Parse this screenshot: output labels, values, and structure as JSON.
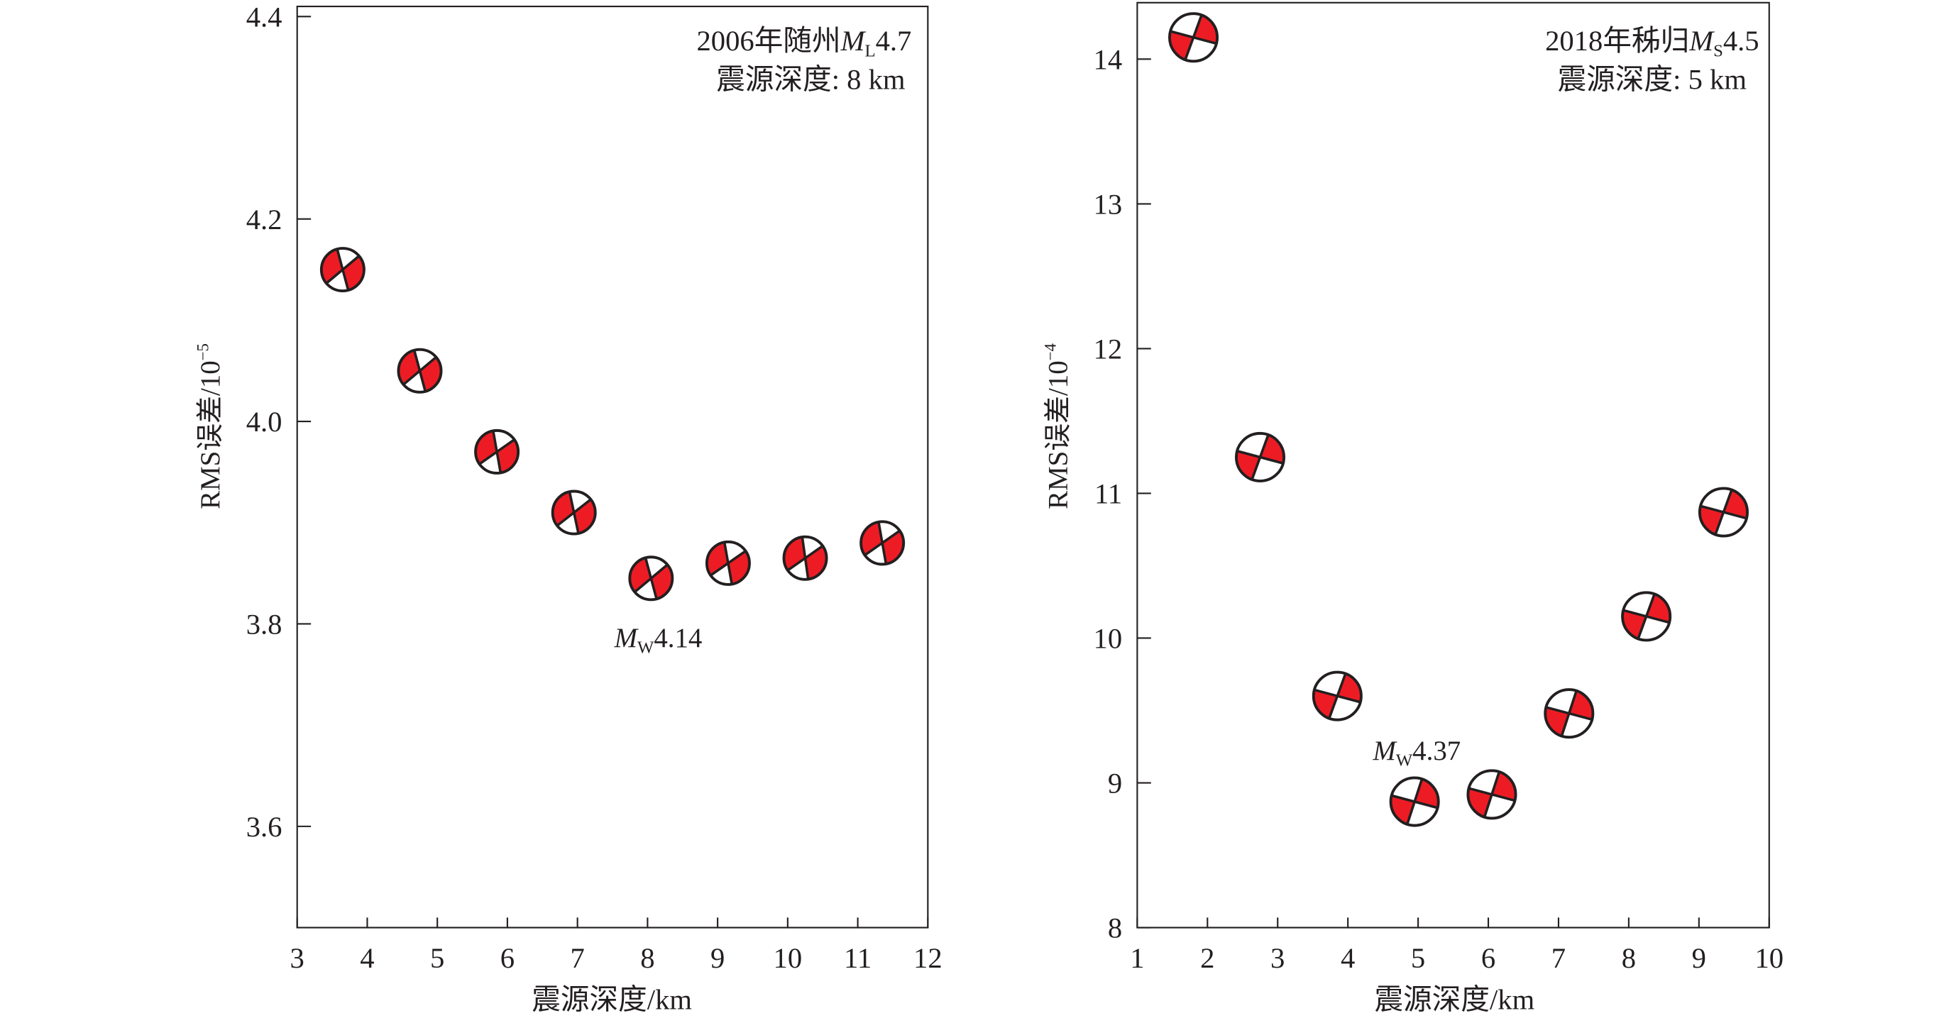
{
  "chart_data": [
    {
      "type": "scatter",
      "title_line1_prefix": "2006年随州",
      "title_mag_symbol": "M",
      "title_mag_sub": "L",
      "title_mag_value": "4.7",
      "title_line2": "震源深度: 8 km",
      "xlabel": "震源深度/km",
      "ylabel": "RMS误差/10",
      "ylabel_exp": "−5",
      "xlim": [
        3,
        12
      ],
      "ylim": [
        3.5,
        4.41
      ],
      "xticks": [
        "3",
        "4",
        "5",
        "6",
        "7",
        "8",
        "9",
        "10",
        "11",
        "12"
      ],
      "yticks": [
        "3.6",
        "3.8",
        "4.0",
        "4.2",
        "4.4"
      ],
      "x": [
        3.65,
        4.75,
        5.85,
        6.95,
        8.05,
        9.15,
        10.25,
        11.35
      ],
      "y": [
        4.15,
        4.05,
        3.97,
        3.91,
        3.845,
        3.86,
        3.865,
        3.88
      ],
      "marker": "focal-mechanism-beachball",
      "marker_color": "#ed1c24",
      "annotation": {
        "symbol": "M",
        "sub": "W",
        "value": "4.14",
        "at_x": 8.05
      }
    },
    {
      "type": "scatter",
      "title_line1_prefix": "2018年秭归",
      "title_mag_symbol": "M",
      "title_mag_sub": "S",
      "title_mag_value": "4.5",
      "title_line2": "震源深度: 5 km",
      "xlabel": "震源深度/km",
      "ylabel": "RMS误差/10",
      "ylabel_exp": "−4",
      "xlim": [
        1,
        10
      ],
      "ylim": [
        8,
        14.39
      ],
      "xticks": [
        "1",
        "2",
        "3",
        "4",
        "5",
        "6",
        "7",
        "8",
        "9",
        "10"
      ],
      "yticks": [
        "8",
        "9",
        "10",
        "11",
        "12",
        "13",
        "14"
      ],
      "x": [
        1.8,
        2.75,
        3.85,
        4.95,
        6.05,
        7.15,
        8.25,
        9.35
      ],
      "y": [
        14.15,
        11.25,
        9.6,
        8.87,
        8.92,
        9.48,
        10.15,
        10.87
      ],
      "marker": "focal-mechanism-beachball",
      "marker_color": "#ed1c24",
      "annotation": {
        "symbol": "M",
        "sub": "W",
        "value": "4.37",
        "at_x": 4.95
      }
    }
  ]
}
